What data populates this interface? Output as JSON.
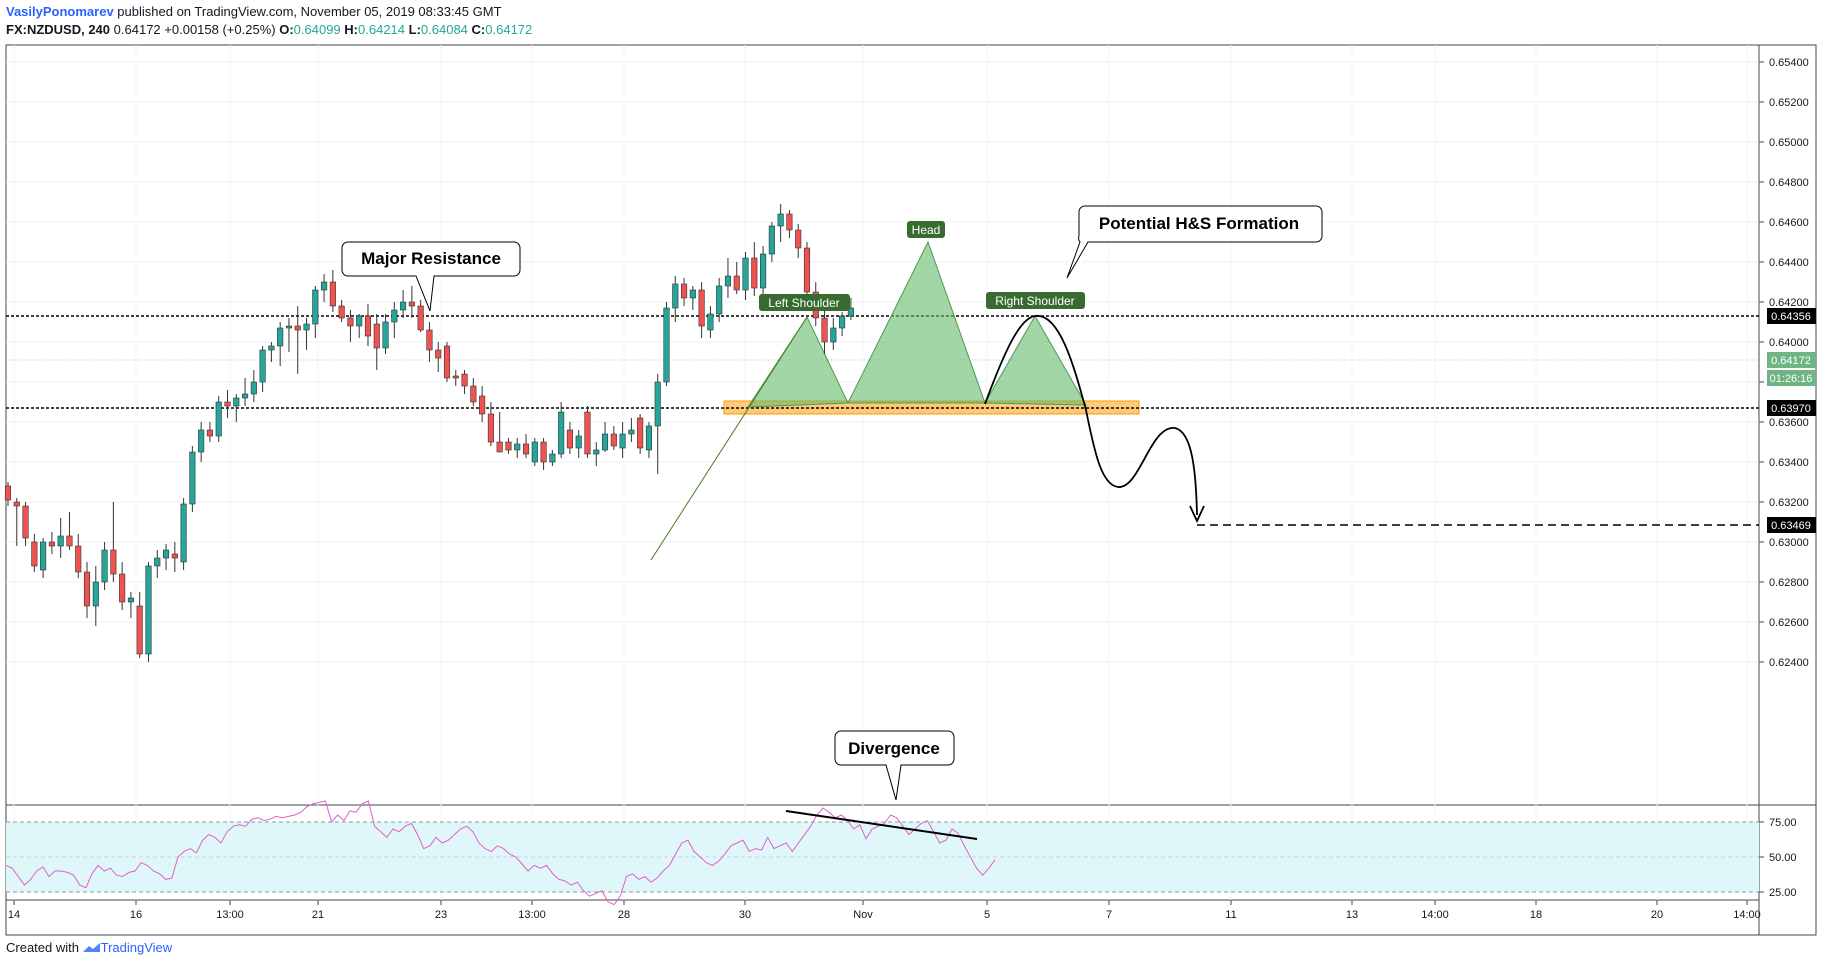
{
  "header": {
    "author": "VasilyPonomarev",
    "published": "published on TradingView.com, November 05, 2019 08:33:45 GMT",
    "symbol": "FX:NZDUSD, 240",
    "last": "0.64172",
    "change": "+0.00158 (+0.25%)",
    "o_label": "O:",
    "o_val": "0.64099",
    "h_label": "H:",
    "h_val": "0.64214",
    "l_label": "L:",
    "l_val": "0.64084",
    "c_label": "C:",
    "c_val": "0.64172"
  },
  "footer": {
    "created_with": "Created with",
    "brand": "TradingView"
  },
  "colors": {
    "up": "#26a69a",
    "down": "#ef5350",
    "rsi_line": "#e060c8",
    "rsi_band": "#e0f7fa",
    "support_zone": "#ffb74d",
    "pattern_fill": "#66bb6a"
  },
  "annotations": {
    "major_resistance": "Major Resistance",
    "potential_hs": "Potential H&S Formation",
    "divergence": "Divergence",
    "head": "Head",
    "left_shoulder": "Left Shoulder",
    "right_shoulder": "Right Shoulder"
  },
  "chart_data": {
    "type": "candlestick",
    "y_range": [
      0.6224,
      0.6556
    ],
    "y_ticks": [
      "0.65400",
      "0.65200",
      "0.65000",
      "0.64800",
      "0.64600",
      "0.64400",
      "0.64200",
      "0.64000",
      "0.63800",
      "0.63600",
      "0.63400",
      "0.63200",
      "0.63000",
      "0.62800",
      "0.62600",
      "0.62400"
    ],
    "y_tick_values": [
      0.654,
      0.652,
      0.65,
      0.648,
      0.646,
      0.644,
      0.642,
      0.64,
      0.638,
      0.636,
      0.634,
      0.632,
      0.63,
      0.628,
      0.626,
      0.624
    ],
    "x_ticks": [
      "14",
      "16",
      "13:00",
      "21",
      "23",
      "13:00",
      "28",
      "30",
      "Nov",
      "5",
      "7",
      "11",
      "13",
      "14:00",
      "18",
      "20",
      "14:00"
    ],
    "price_labels": {
      "resistance": "0.64356",
      "current": "0.64172",
      "countdown": "01:26:16",
      "support": "0.63970",
      "target": "0.63469"
    },
    "levels": {
      "resistance": 0.64356,
      "support": 0.6397,
      "target": 0.63469,
      "current": 0.64172
    },
    "candles": [
      [
        0.6328,
        0.633,
        0.6318,
        0.6321
      ],
      [
        0.632,
        0.6322,
        0.6298,
        0.6318
      ],
      [
        0.6318,
        0.632,
        0.6298,
        0.6302
      ],
      [
        0.63,
        0.6304,
        0.6285,
        0.6288
      ],
      [
        0.6286,
        0.6302,
        0.6282,
        0.63
      ],
      [
        0.63,
        0.6305,
        0.6294,
        0.6298
      ],
      [
        0.6298,
        0.6312,
        0.6292,
        0.6303
      ],
      [
        0.6303,
        0.6315,
        0.6296,
        0.6298
      ],
      [
        0.6298,
        0.6304,
        0.6282,
        0.6285
      ],
      [
        0.6285,
        0.629,
        0.6262,
        0.6268
      ],
      [
        0.6268,
        0.6288,
        0.6258,
        0.628
      ],
      [
        0.628,
        0.63,
        0.6276,
        0.6296
      ],
      [
        0.6296,
        0.632,
        0.628,
        0.6284
      ],
      [
        0.6284,
        0.629,
        0.6266,
        0.627
      ],
      [
        0.627,
        0.6275,
        0.6262,
        0.6272
      ],
      [
        0.6268,
        0.6275,
        0.6242,
        0.6244
      ],
      [
        0.6244,
        0.629,
        0.624,
        0.6288
      ],
      [
        0.6288,
        0.6296,
        0.6282,
        0.6292
      ],
      [
        0.6292,
        0.6299,
        0.6286,
        0.6296
      ],
      [
        0.6294,
        0.63,
        0.6285,
        0.6292
      ],
      [
        0.629,
        0.6322,
        0.6286,
        0.6319
      ],
      [
        0.6319,
        0.6348,
        0.6315,
        0.6345
      ],
      [
        0.6345,
        0.636,
        0.634,
        0.6356
      ],
      [
        0.6356,
        0.636,
        0.635,
        0.6353
      ],
      [
        0.6353,
        0.6373,
        0.635,
        0.637
      ],
      [
        0.637,
        0.6376,
        0.6362,
        0.6368
      ],
      [
        0.6368,
        0.6374,
        0.636,
        0.6372
      ],
      [
        0.6372,
        0.6382,
        0.6368,
        0.6374
      ],
      [
        0.6374,
        0.6386,
        0.637,
        0.638
      ],
      [
        0.638,
        0.6398,
        0.6375,
        0.6396
      ],
      [
        0.6396,
        0.64,
        0.639,
        0.6398
      ],
      [
        0.6398,
        0.641,
        0.6388,
        0.6407
      ],
      [
        0.6407,
        0.6412,
        0.6395,
        0.6408
      ],
      [
        0.6408,
        0.6418,
        0.6384,
        0.6406
      ],
      [
        0.6406,
        0.6412,
        0.6396,
        0.6409
      ],
      [
        0.6409,
        0.6428,
        0.6402,
        0.6426
      ],
      [
        0.6426,
        0.6434,
        0.642,
        0.643
      ],
      [
        0.643,
        0.6436,
        0.6415,
        0.6418
      ],
      [
        0.6418,
        0.6421,
        0.641,
        0.6412
      ],
      [
        0.6412,
        0.6416,
        0.64,
        0.6408
      ],
      [
        0.6408,
        0.6414,
        0.6402,
        0.6413
      ],
      [
        0.6413,
        0.6419,
        0.6398,
        0.6403
      ],
      [
        0.6409,
        0.6414,
        0.6386,
        0.6397
      ],
      [
        0.6397,
        0.6414,
        0.6394,
        0.641
      ],
      [
        0.641,
        0.642,
        0.6402,
        0.6416
      ],
      [
        0.6416,
        0.6426,
        0.6412,
        0.642
      ],
      [
        0.642,
        0.6428,
        0.6412,
        0.6418
      ],
      [
        0.6418,
        0.6421,
        0.6405,
        0.6406
      ],
      [
        0.6406,
        0.641,
        0.639,
        0.6396
      ],
      [
        0.6396,
        0.64,
        0.6385,
        0.6392
      ],
      [
        0.6398,
        0.64,
        0.638,
        0.6382
      ],
      [
        0.6383,
        0.6386,
        0.6378,
        0.6382
      ],
      [
        0.6384,
        0.6386,
        0.6374,
        0.6378
      ],
      [
        0.6378,
        0.6382,
        0.6368,
        0.637
      ],
      [
        0.6373,
        0.6378,
        0.636,
        0.6364
      ],
      [
        0.6364,
        0.637,
        0.6348,
        0.635
      ],
      [
        0.635,
        0.6365,
        0.6346,
        0.6345
      ],
      [
        0.635,
        0.6352,
        0.6344,
        0.6346
      ],
      [
        0.6346,
        0.6352,
        0.6342,
        0.6349
      ],
      [
        0.6349,
        0.6354,
        0.6342,
        0.6344
      ],
      [
        0.634,
        0.6352,
        0.6338,
        0.635
      ],
      [
        0.635,
        0.6352,
        0.6336,
        0.634
      ],
      [
        0.634,
        0.6346,
        0.6338,
        0.6344
      ],
      [
        0.6344,
        0.637,
        0.6342,
        0.6365
      ],
      [
        0.6356,
        0.636,
        0.6344,
        0.6347
      ],
      [
        0.6347,
        0.6356,
        0.6342,
        0.6353
      ],
      [
        0.6365,
        0.6368,
        0.6342,
        0.6344
      ],
      [
        0.6344,
        0.635,
        0.6338,
        0.6346
      ],
      [
        0.6346,
        0.636,
        0.6345,
        0.6354
      ],
      [
        0.6354,
        0.6358,
        0.6346,
        0.6348
      ],
      [
        0.6347,
        0.636,
        0.6342,
        0.6354
      ],
      [
        0.6354,
        0.6362,
        0.635,
        0.6356
      ],
      [
        0.6362,
        0.6364,
        0.6344,
        0.6347
      ],
      [
        0.6346,
        0.636,
        0.6342,
        0.6358
      ],
      [
        0.6358,
        0.6384,
        0.6334,
        0.638
      ],
      [
        0.638,
        0.642,
        0.6378,
        0.6417
      ],
      [
        0.6417,
        0.6433,
        0.641,
        0.6429
      ],
      [
        0.6429,
        0.6432,
        0.6418,
        0.6422
      ],
      [
        0.6422,
        0.6428,
        0.6416,
        0.6426
      ],
      [
        0.6426,
        0.643,
        0.6402,
        0.6408
      ],
      [
        0.6406,
        0.6418,
        0.6402,
        0.6414
      ],
      [
        0.6414,
        0.6432,
        0.641,
        0.6428
      ],
      [
        0.6428,
        0.6442,
        0.6422,
        0.6433
      ],
      [
        0.6433,
        0.644,
        0.6424,
        0.6426
      ],
      [
        0.6426,
        0.6445,
        0.6421,
        0.6442
      ],
      [
        0.6442,
        0.645,
        0.6423,
        0.6427
      ],
      [
        0.6427,
        0.6448,
        0.6418,
        0.6444
      ],
      [
        0.6444,
        0.646,
        0.644,
        0.6458
      ],
      [
        0.6458,
        0.6469,
        0.645,
        0.6464
      ],
      [
        0.6464,
        0.6466,
        0.6452,
        0.6456
      ],
      [
        0.6456,
        0.6459,
        0.6442,
        0.6447
      ],
      [
        0.6447,
        0.645,
        0.642,
        0.6425
      ],
      [
        0.6425,
        0.643,
        0.6408,
        0.6412
      ],
      [
        0.6412,
        0.6416,
        0.6394,
        0.64
      ],
      [
        0.64,
        0.6412,
        0.6396,
        0.6407
      ],
      [
        0.6407,
        0.6415,
        0.6403,
        0.6413
      ],
      [
        0.6413,
        0.6422,
        0.6411,
        0.6417
      ]
    ]
  },
  "rsi": {
    "levels": [
      "75.00",
      "50.00",
      "25.00"
    ],
    "level_values": [
      75,
      50,
      25
    ],
    "values": [
      44,
      42,
      36,
      30,
      34,
      40,
      43,
      36,
      40,
      40,
      39,
      37,
      30,
      28,
      38,
      44,
      40,
      42,
      37,
      36,
      39,
      40,
      46,
      44,
      40,
      38,
      34,
      35,
      50,
      54,
      56,
      53,
      62,
      66,
      64,
      60,
      68,
      72,
      73,
      72,
      77,
      78,
      76,
      77,
      79,
      78,
      79,
      80,
      82,
      86,
      88,
      89,
      90,
      75,
      80,
      76,
      83,
      82,
      88,
      90,
      72,
      68,
      64,
      70,
      68,
      72,
      74,
      66,
      56,
      58,
      64,
      60,
      62,
      66,
      70,
      72,
      68,
      60,
      56,
      54,
      58,
      56,
      52,
      50,
      45,
      40,
      44,
      42,
      44,
      38,
      34,
      33,
      30,
      32,
      26,
      22,
      24,
      26,
      18,
      16,
      22,
      36,
      38,
      34,
      36,
      32,
      35,
      40,
      44,
      52,
      60,
      62,
      54,
      50,
      46,
      44,
      47,
      52,
      58,
      60,
      62,
      54,
      56,
      55,
      64,
      56,
      58,
      60,
      54,
      60,
      66,
      72,
      80,
      85,
      82,
      78,
      80,
      76,
      70,
      73,
      63,
      70,
      72,
      74,
      80,
      78,
      72,
      66,
      70,
      74,
      76,
      68,
      60,
      62,
      70,
      67,
      58,
      50,
      42,
      37,
      42,
      48
    ],
    "divergence_line": [
      82,
      71
    ]
  }
}
